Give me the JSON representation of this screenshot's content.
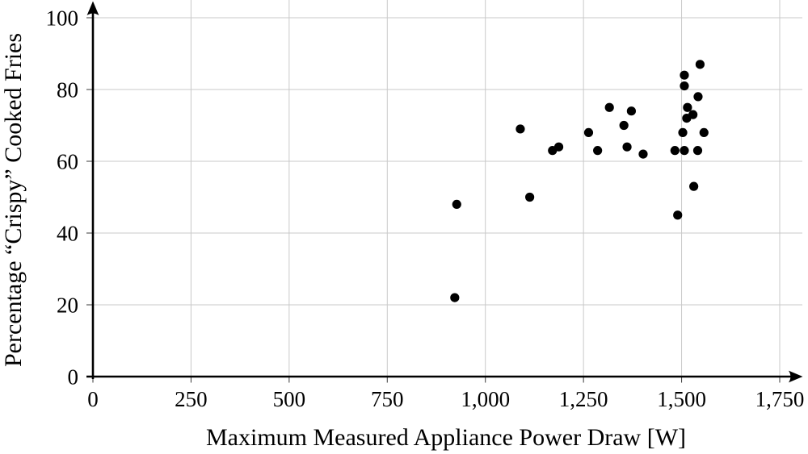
{
  "figure": {
    "background": "#ffffff"
  },
  "chart_data": {
    "type": "scatter",
    "title": "",
    "xlabel": "Maximum Measured Appliance Power Draw [W]",
    "ylabel": "Percentage “Crispy” Cooked Fries",
    "xlim": [
      0,
      1750
    ],
    "ylim": [
      0,
      100
    ],
    "x_ticks": [
      0,
      250,
      500,
      750,
      1000,
      1250,
      1500,
      1750
    ],
    "x_tick_labels": [
      "0",
      "250",
      "500",
      "750",
      "1,000",
      "1,250",
      "1,500",
      "1,750"
    ],
    "y_ticks": [
      0,
      20,
      40,
      60,
      80,
      100
    ],
    "y_tick_labels": [
      "0",
      "20",
      "40",
      "60",
      "80",
      "100"
    ],
    "grid": true,
    "legend_position": "none",
    "marker": {
      "shape": "circle",
      "radius": 5.6,
      "color": "#000000"
    },
    "colors": {
      "background": "#ffffff",
      "grid": "#c9c9c9",
      "axis": "#000000",
      "tick": "#3a3a3a",
      "text": "#000000"
    },
    "points": [
      [
        922,
        22
      ],
      [
        927,
        48
      ],
      [
        1089,
        69
      ],
      [
        1113,
        50
      ],
      [
        1171,
        63
      ],
      [
        1187,
        64
      ],
      [
        1263,
        68
      ],
      [
        1286,
        63
      ],
      [
        1316,
        75
      ],
      [
        1353,
        70
      ],
      [
        1361,
        64
      ],
      [
        1372,
        74
      ],
      [
        1402,
        62
      ],
      [
        1483,
        63
      ],
      [
        1490,
        45
      ],
      [
        1503,
        68
      ],
      [
        1507,
        63
      ],
      [
        1507,
        81
      ],
      [
        1507,
        84
      ],
      [
        1513,
        72
      ],
      [
        1515,
        75
      ],
      [
        1529,
        73
      ],
      [
        1531,
        53
      ],
      [
        1541,
        63
      ],
      [
        1542,
        78
      ],
      [
        1547,
        87
      ],
      [
        1557,
        68
      ]
    ]
  }
}
